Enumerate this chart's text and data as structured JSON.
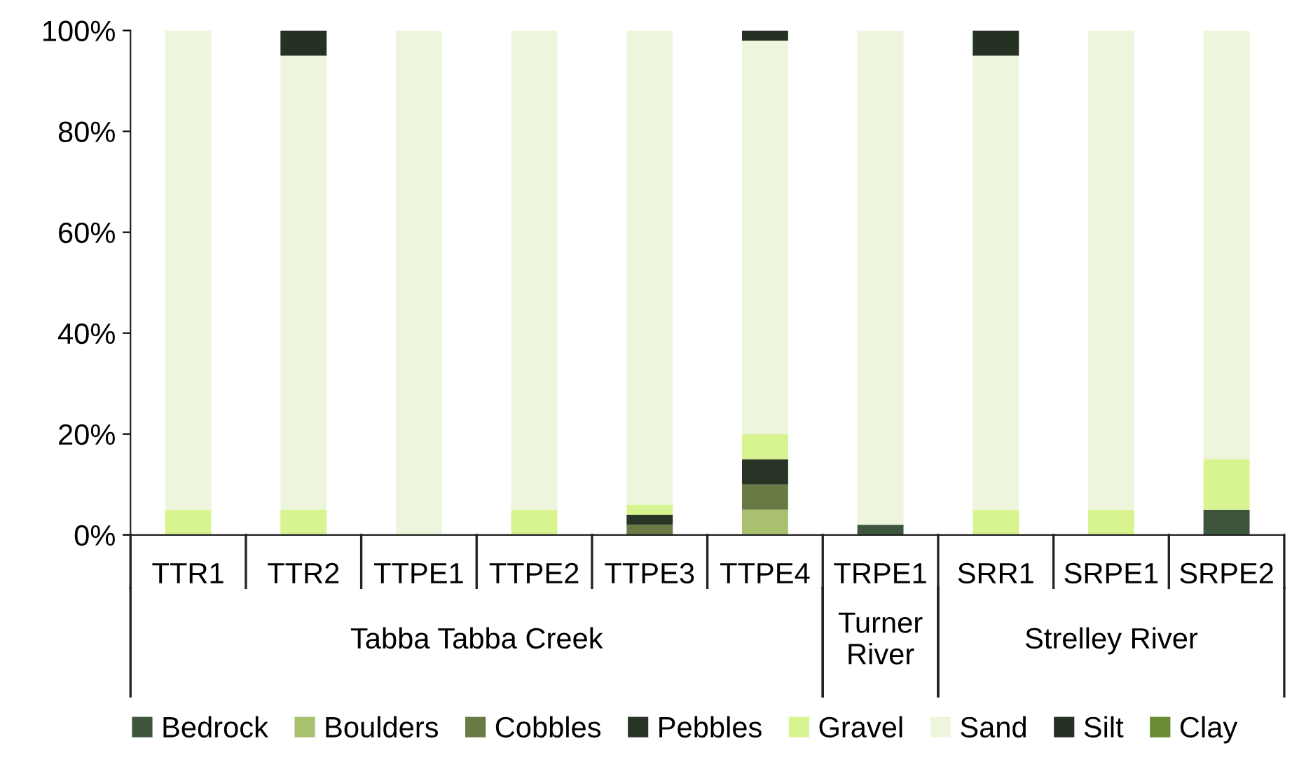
{
  "chart_data": {
    "type": "bar",
    "stacked": true,
    "categories": [
      "TTR1",
      "TTR2",
      "TTPE1",
      "TTPE2",
      "TTPE3",
      "TTPE4",
      "TRPE1",
      "SRR1",
      "SRPE1",
      "SRPE2"
    ],
    "series": [
      {
        "name": "Bedrock",
        "color": "#3d553d",
        "values": [
          0,
          0,
          0,
          0,
          0,
          0,
          2,
          0,
          0,
          5
        ]
      },
      {
        "name": "Boulders",
        "color": "#a9c16f",
        "values": [
          0,
          0,
          0,
          0,
          0,
          5,
          0,
          0,
          0,
          0
        ]
      },
      {
        "name": "Cobbles",
        "color": "#697a45",
        "values": [
          0,
          0,
          0,
          0,
          2,
          5,
          0,
          0,
          0,
          0
        ]
      },
      {
        "name": "Pebbles",
        "color": "#283426",
        "values": [
          0,
          0,
          0,
          0,
          2,
          5,
          0,
          0,
          0,
          0
        ]
      },
      {
        "name": "Gravel",
        "color": "#d7f490",
        "values": [
          5,
          5,
          0,
          5,
          2,
          5,
          0,
          5,
          5,
          10
        ]
      },
      {
        "name": "Sand",
        "color": "#edf6dc",
        "values": [
          95,
          90,
          100,
          95,
          94,
          78,
          98,
          90,
          95,
          85
        ]
      },
      {
        "name": "Silt",
        "color": "#243123",
        "values": [
          0,
          5,
          0,
          0,
          0,
          2,
          0,
          5,
          0,
          0
        ]
      },
      {
        "name": "Clay",
        "color": "#6b8a34",
        "values": [
          0,
          0,
          0,
          0,
          0,
          0,
          0,
          0,
          0,
          0
        ]
      }
    ],
    "ylim": [
      0,
      100
    ],
    "yticks": [
      {
        "value": 0,
        "label": "0%"
      },
      {
        "value": 20,
        "label": "20%"
      },
      {
        "value": 40,
        "label": "40%"
      },
      {
        "value": 60,
        "label": "60%"
      },
      {
        "value": 80,
        "label": "80%"
      },
      {
        "value": 100,
        "label": "100%"
      }
    ],
    "grid": false,
    "legend": "bottom",
    "annotations": [
      "Tabba Tabba Creek",
      "Turner\nRiver",
      "Strelley River"
    ]
  }
}
